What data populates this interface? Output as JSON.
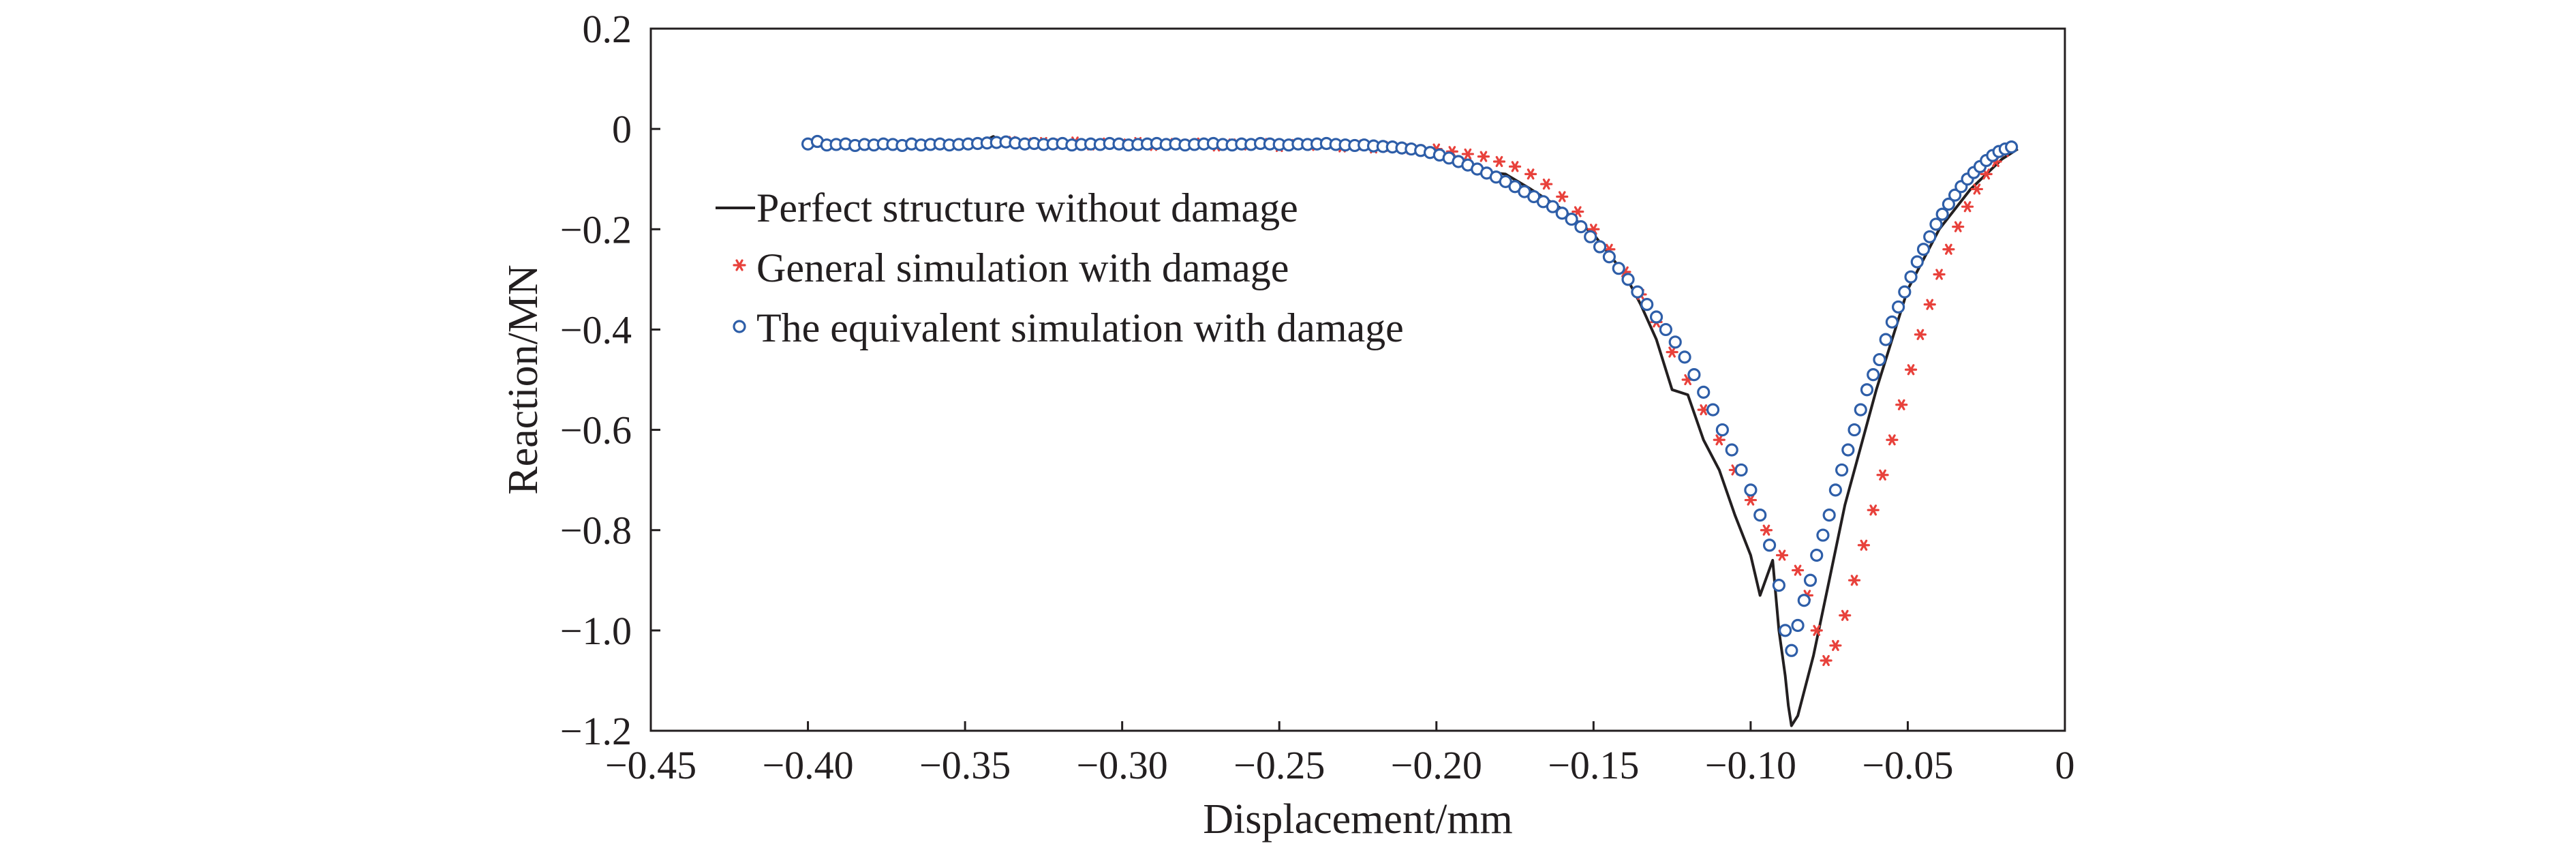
{
  "chart_data": {
    "type": "scatter",
    "title": "",
    "xlabel": "Displacement/mm",
    "ylabel": "Reaction/MN",
    "xlim": [
      -0.45,
      0
    ],
    "ylim": [
      -1.2,
      0.2
    ],
    "x_ticks": [
      -0.45,
      -0.4,
      -0.35,
      -0.3,
      -0.25,
      -0.2,
      -0.15,
      -0.1,
      -0.05,
      0
    ],
    "x_tick_labels": [
      "−0.45",
      "−0.40",
      "−0.35",
      "−0.30",
      "−0.25",
      "−0.20",
      "−0.15",
      "−0.10",
      "−0.05",
      "0"
    ],
    "y_ticks": [
      0.2,
      0,
      -0.2,
      -0.4,
      -0.6,
      -0.8,
      -1.0,
      -1.2
    ],
    "y_tick_labels": [
      "0.2",
      "0",
      "−0.2",
      "−0.4",
      "−0.6",
      "−0.8",
      "−1.0",
      "−1.2"
    ],
    "grid": false,
    "legend_position": "left-center",
    "colors": {
      "perfect": "#231f20",
      "general": "#e8413b",
      "equivalent": "#2e5ea8",
      "axis": "#231f20"
    },
    "series": [
      {
        "name": "Perfect structure without damage",
        "style": "line",
        "x": [
          -0.4,
          -0.38,
          -0.36,
          -0.345,
          -0.341,
          -0.337,
          -0.32,
          -0.3,
          -0.28,
          -0.26,
          -0.24,
          -0.22,
          -0.205,
          -0.195,
          -0.185,
          -0.178,
          -0.17,
          -0.16,
          -0.15,
          -0.14,
          -0.135,
          -0.13,
          -0.125,
          -0.12,
          -0.115,
          -0.11,
          -0.105,
          -0.1,
          -0.097,
          -0.093,
          -0.091,
          -0.089,
          -0.088,
          -0.087,
          -0.085,
          -0.08,
          -0.075,
          -0.07,
          -0.06,
          -0.05,
          -0.04,
          -0.03,
          -0.02,
          -0.015
        ],
        "y": [
          -0.03,
          -0.031,
          -0.031,
          -0.028,
          -0.015,
          -0.03,
          -0.032,
          -0.033,
          -0.035,
          -0.036,
          -0.036,
          -0.038,
          -0.045,
          -0.06,
          -0.085,
          -0.09,
          -0.12,
          -0.16,
          -0.21,
          -0.29,
          -0.35,
          -0.42,
          -0.52,
          -0.53,
          -0.62,
          -0.68,
          -0.77,
          -0.85,
          -0.93,
          -0.86,
          -1.0,
          -1.09,
          -1.15,
          -1.19,
          -1.17,
          -1.05,
          -0.9,
          -0.75,
          -0.52,
          -0.32,
          -0.2,
          -0.12,
          -0.06,
          -0.04
        ]
      },
      {
        "name": "General simulation with damage",
        "style": "asterisk",
        "x": [
          -0.335,
          -0.33,
          -0.325,
          -0.32,
          -0.315,
          -0.31,
          -0.305,
          -0.3,
          -0.295,
          -0.29,
          -0.285,
          -0.28,
          -0.275,
          -0.27,
          -0.265,
          -0.26,
          -0.255,
          -0.25,
          -0.245,
          -0.24,
          -0.235,
          -0.23,
          -0.225,
          -0.22,
          -0.215,
          -0.21,
          -0.205,
          -0.2,
          -0.195,
          -0.19,
          -0.185,
          -0.18,
          -0.175,
          -0.17,
          -0.165,
          -0.16,
          -0.155,
          -0.15,
          -0.145,
          -0.14,
          -0.135,
          -0.13,
          -0.125,
          -0.12,
          -0.115,
          -0.11,
          -0.105,
          -0.1,
          -0.095,
          -0.09,
          -0.085,
          -0.082,
          -0.079,
          -0.076,
          -0.073,
          -0.07,
          -0.067,
          -0.064,
          -0.061,
          -0.058,
          -0.055,
          -0.052,
          -0.049,
          -0.046,
          -0.043,
          -0.04,
          -0.037,
          -0.034,
          -0.031,
          -0.028,
          -0.025,
          -0.022,
          -0.019
        ],
        "y": [
          -0.025,
          -0.028,
          -0.027,
          -0.03,
          -0.026,
          -0.032,
          -0.028,
          -0.03,
          -0.027,
          -0.033,
          -0.029,
          -0.031,
          -0.028,
          -0.034,
          -0.03,
          -0.032,
          -0.029,
          -0.035,
          -0.031,
          -0.033,
          -0.03,
          -0.036,
          -0.032,
          -0.038,
          -0.035,
          -0.04,
          -0.042,
          -0.04,
          -0.045,
          -0.05,
          -0.055,
          -0.065,
          -0.075,
          -0.09,
          -0.11,
          -0.135,
          -0.165,
          -0.2,
          -0.24,
          -0.285,
          -0.33,
          -0.385,
          -0.445,
          -0.5,
          -0.56,
          -0.62,
          -0.68,
          -0.74,
          -0.8,
          -0.85,
          -0.88,
          -0.93,
          -1.0,
          -1.06,
          -1.03,
          -0.97,
          -0.9,
          -0.83,
          -0.76,
          -0.69,
          -0.62,
          -0.55,
          -0.48,
          -0.41,
          -0.35,
          -0.29,
          -0.24,
          -0.195,
          -0.155,
          -0.12,
          -0.09,
          -0.065,
          -0.045
        ]
      },
      {
        "name": "The equivalent simulation with damage",
        "style": "circle",
        "x": [
          -0.4,
          -0.397,
          -0.394,
          -0.391,
          -0.388,
          -0.385,
          -0.382,
          -0.379,
          -0.376,
          -0.373,
          -0.37,
          -0.367,
          -0.364,
          -0.361,
          -0.358,
          -0.355,
          -0.352,
          -0.349,
          -0.346,
          -0.343,
          -0.34,
          -0.337,
          -0.334,
          -0.331,
          -0.328,
          -0.325,
          -0.322,
          -0.319,
          -0.316,
          -0.313,
          -0.31,
          -0.307,
          -0.304,
          -0.301,
          -0.298,
          -0.295,
          -0.292,
          -0.289,
          -0.286,
          -0.283,
          -0.28,
          -0.277,
          -0.274,
          -0.271,
          -0.268,
          -0.265,
          -0.262,
          -0.259,
          -0.256,
          -0.253,
          -0.25,
          -0.247,
          -0.244,
          -0.241,
          -0.238,
          -0.235,
          -0.232,
          -0.229,
          -0.226,
          -0.223,
          -0.22,
          -0.217,
          -0.214,
          -0.211,
          -0.208,
          -0.205,
          -0.202,
          -0.199,
          -0.196,
          -0.193,
          -0.19,
          -0.187,
          -0.184,
          -0.181,
          -0.178,
          -0.175,
          -0.172,
          -0.169,
          -0.166,
          -0.163,
          -0.16,
          -0.157,
          -0.154,
          -0.151,
          -0.148,
          -0.145,
          -0.142,
          -0.139,
          -0.136,
          -0.133,
          -0.13,
          -0.127,
          -0.124,
          -0.121,
          -0.118,
          -0.115,
          -0.112,
          -0.109,
          -0.106,
          -0.103,
          -0.1,
          -0.097,
          -0.094,
          -0.091,
          -0.089,
          -0.087,
          -0.085,
          -0.083,
          -0.081,
          -0.079,
          -0.077,
          -0.075,
          -0.073,
          -0.071,
          -0.069,
          -0.067,
          -0.065,
          -0.063,
          -0.061,
          -0.059,
          -0.057,
          -0.055,
          -0.053,
          -0.051,
          -0.049,
          -0.047,
          -0.045,
          -0.043,
          -0.041,
          -0.039,
          -0.037,
          -0.035,
          -0.033,
          -0.031,
          -0.029,
          -0.027,
          -0.025,
          -0.023,
          -0.021,
          -0.019,
          -0.017
        ],
        "y": [
          -0.03,
          -0.025,
          -0.032,
          -0.031,
          -0.03,
          -0.033,
          -0.031,
          -0.032,
          -0.03,
          -0.031,
          -0.033,
          -0.03,
          -0.032,
          -0.031,
          -0.03,
          -0.032,
          -0.031,
          -0.03,
          -0.029,
          -0.028,
          -0.027,
          -0.026,
          -0.028,
          -0.03,
          -0.029,
          -0.031,
          -0.03,
          -0.029,
          -0.032,
          -0.031,
          -0.03,
          -0.031,
          -0.029,
          -0.03,
          -0.032,
          -0.031,
          -0.03,
          -0.029,
          -0.031,
          -0.03,
          -0.032,
          -0.031,
          -0.03,
          -0.029,
          -0.031,
          -0.032,
          -0.03,
          -0.031,
          -0.029,
          -0.03,
          -0.031,
          -0.032,
          -0.03,
          -0.031,
          -0.03,
          -0.029,
          -0.031,
          -0.032,
          -0.033,
          -0.032,
          -0.034,
          -0.035,
          -0.036,
          -0.038,
          -0.04,
          -0.043,
          -0.047,
          -0.052,
          -0.058,
          -0.065,
          -0.072,
          -0.08,
          -0.088,
          -0.096,
          -0.105,
          -0.115,
          -0.125,
          -0.135,
          -0.145,
          -0.155,
          -0.168,
          -0.18,
          -0.195,
          -0.215,
          -0.235,
          -0.255,
          -0.278,
          -0.3,
          -0.325,
          -0.35,
          -0.375,
          -0.4,
          -0.425,
          -0.455,
          -0.49,
          -0.525,
          -0.56,
          -0.6,
          -0.64,
          -0.68,
          -0.72,
          -0.77,
          -0.83,
          -0.91,
          -1.0,
          -1.04,
          -0.99,
          -0.94,
          -0.9,
          -0.85,
          -0.81,
          -0.77,
          -0.72,
          -0.68,
          -0.64,
          -0.6,
          -0.56,
          -0.52,
          -0.49,
          -0.46,
          -0.42,
          -0.385,
          -0.355,
          -0.325,
          -0.295,
          -0.265,
          -0.24,
          -0.215,
          -0.19,
          -0.17,
          -0.15,
          -0.132,
          -0.115,
          -0.1,
          -0.087,
          -0.075,
          -0.063,
          -0.053,
          -0.045,
          -0.04,
          -0.036
        ]
      }
    ]
  }
}
